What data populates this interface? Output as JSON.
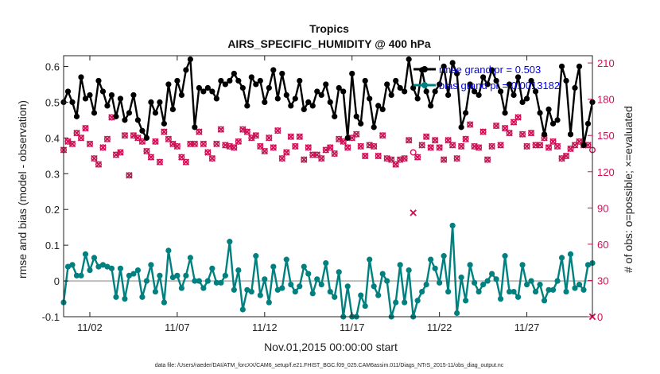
{
  "colors": {
    "rmse": "#000000",
    "bias": "#00807f",
    "obs": "#cc1155",
    "zero_line": "#bdbdbd",
    "legend_text": "#0000ee"
  },
  "chart_data": {
    "type": "line",
    "title": "Tropics",
    "subtitle": "AIRS_SPECIFIC_HUMIDITY @ 400 hPa",
    "xlabel": "Nov.01,2015 00:00:00 start",
    "ylabel": "rmse and bias (model - observation)",
    "y2label": "# of obs: o=possible; ×=evaluated",
    "footnote": "data file: /Users/raeder/DAI/ATM_forcXX/CAM6_setup/f.e21.FHIST_BGC.f09_025.CAM6assim.011/Diags_NTrS_2015-11/obs_diag_output.nc",
    "xlim": [
      0.5,
      30.75
    ],
    "ylim": [
      -0.1,
      0.63
    ],
    "y2lim": [
      0,
      216
    ],
    "x_ticks": [
      2,
      7,
      12,
      17,
      22,
      27
    ],
    "x_tick_labels": [
      "11/02",
      "11/07",
      "11/12",
      "11/17",
      "11/22",
      "11/27"
    ],
    "y_ticks": [
      -0.1,
      0,
      0.1,
      0.2,
      0.3,
      0.4,
      0.5,
      0.6
    ],
    "y_tick_labels": [
      "-0.1",
      "0",
      "0.1",
      "0.2",
      "0.3",
      "0.4",
      "0.5",
      "0.6"
    ],
    "y2_ticks": [
      0,
      30,
      60,
      90,
      120,
      150,
      180,
      210
    ],
    "y2_tick_labels": [
      "0",
      "30",
      "60",
      "90",
      "120",
      "150",
      "180",
      "210"
    ],
    "legend": [
      "rmse grand pr = 0.503",
      "bias grand pr = 0.0013182"
    ],
    "legend_position": "top-right",
    "series": [
      {
        "name": "rmse",
        "x": [
          0.5,
          0.75,
          1.0,
          1.25,
          1.5,
          1.75,
          2.0,
          2.25,
          2.5,
          2.75,
          3.0,
          3.25,
          3.5,
          3.75,
          4.0,
          4.25,
          4.5,
          4.75,
          5.0,
          5.25,
          5.5,
          5.75,
          6.0,
          6.25,
          6.5,
          6.75,
          7.0,
          7.25,
          7.5,
          7.75,
          8.0,
          8.25,
          8.5,
          8.75,
          9.0,
          9.25,
          9.5,
          9.75,
          10.0,
          10.25,
          10.5,
          10.75,
          11.0,
          11.25,
          11.5,
          11.75,
          12.0,
          12.25,
          12.5,
          12.75,
          13.0,
          13.25,
          13.5,
          13.75,
          14.0,
          14.25,
          14.5,
          14.75,
          15.0,
          15.25,
          15.5,
          15.75,
          16.0,
          16.25,
          16.5,
          16.75,
          17.0,
          17.25,
          17.5,
          17.75,
          18.0,
          18.25,
          18.5,
          18.75,
          19.0,
          19.25,
          19.5,
          19.75,
          20.0,
          20.25,
          20.5,
          20.75,
          21.0,
          21.25,
          21.5,
          21.75,
          22.0,
          22.25,
          22.5,
          22.75,
          23.0,
          23.25,
          23.5,
          23.75,
          24.0,
          24.25,
          24.5,
          24.75,
          25.0,
          25.25,
          25.5,
          25.75,
          26.0,
          26.25,
          26.5,
          26.75,
          27.0,
          27.25,
          27.5,
          27.75,
          28.0,
          28.25,
          28.5,
          28.75,
          29.0,
          29.25,
          29.5,
          29.75,
          30.0,
          30.25,
          30.5,
          30.75
        ],
        "values": [
          0.5,
          0.53,
          0.5,
          0.46,
          0.57,
          0.51,
          0.52,
          0.47,
          0.56,
          0.53,
          0.49,
          0.52,
          0.46,
          0.51,
          0.45,
          0.47,
          0.52,
          0.45,
          0.42,
          0.4,
          0.5,
          0.47,
          0.5,
          0.44,
          0.55,
          0.48,
          0.56,
          0.52,
          0.59,
          0.62,
          0.43,
          0.54,
          0.53,
          0.54,
          0.53,
          0.51,
          0.56,
          0.55,
          0.56,
          0.58,
          0.56,
          0.54,
          0.49,
          0.57,
          0.55,
          0.56,
          0.5,
          0.54,
          0.59,
          0.51,
          0.58,
          0.52,
          0.49,
          0.51,
          0.56,
          0.48,
          0.5,
          0.49,
          0.53,
          0.52,
          0.55,
          0.5,
          0.46,
          0.54,
          0.53,
          0.4,
          0.58,
          0.46,
          0.44,
          0.56,
          0.51,
          0.43,
          0.49,
          0.48,
          0.55,
          0.52,
          0.56,
          0.54,
          0.53,
          0.62,
          0.54,
          0.51,
          0.59,
          0.53,
          0.49,
          0.53,
          0.55,
          0.6,
          0.52,
          0.61,
          0.58,
          0.43,
          0.47,
          0.55,
          0.53,
          0.52,
          0.57,
          0.55,
          0.59,
          0.56,
          0.53,
          0.47,
          0.55,
          0.52,
          0.57,
          0.5,
          0.51,
          0.56,
          0.53,
          0.47,
          0.41,
          0.48,
          0.44,
          0.45,
          0.6,
          0.56,
          0.41,
          0.54,
          0.6,
          0.38,
          0.44,
          0.5
        ],
        "color": "#000000"
      },
      {
        "name": "bias",
        "x": [
          0.5,
          0.75,
          1.0,
          1.25,
          1.5,
          1.75,
          2.0,
          2.25,
          2.5,
          2.75,
          3.0,
          3.25,
          3.5,
          3.75,
          4.0,
          4.25,
          4.5,
          4.75,
          5.0,
          5.25,
          5.5,
          5.75,
          6.0,
          6.25,
          6.5,
          6.75,
          7.0,
          7.25,
          7.5,
          7.75,
          8.0,
          8.25,
          8.5,
          8.75,
          9.0,
          9.25,
          9.5,
          9.75,
          10.0,
          10.25,
          10.5,
          10.75,
          11.0,
          11.25,
          11.5,
          11.75,
          12.0,
          12.25,
          12.5,
          12.75,
          13.0,
          13.25,
          13.5,
          13.75,
          14.0,
          14.25,
          14.5,
          14.75,
          15.0,
          15.25,
          15.5,
          15.75,
          16.0,
          16.25,
          16.5,
          16.75,
          17.0,
          17.25,
          17.5,
          17.75,
          18.0,
          18.25,
          18.5,
          18.75,
          19.0,
          19.25,
          19.5,
          19.75,
          20.0,
          20.25,
          20.5,
          20.75,
          21.0,
          21.25,
          21.5,
          21.75,
          22.0,
          22.25,
          22.5,
          22.75,
          23.0,
          23.25,
          23.5,
          23.75,
          24.0,
          24.25,
          24.5,
          24.75,
          25.0,
          25.25,
          25.5,
          25.75,
          26.0,
          26.25,
          26.5,
          26.75,
          27.0,
          27.25,
          27.5,
          27.75,
          28.0,
          28.25,
          28.5,
          28.75,
          29.0,
          29.25,
          29.5,
          29.75,
          30.0,
          30.25,
          30.5,
          30.75
        ],
        "values": [
          -0.06,
          0.04,
          0.045,
          0.015,
          0.015,
          0.075,
          0.03,
          0.065,
          0.04,
          0.045,
          0.04,
          0.035,
          -0.045,
          0.035,
          -0.05,
          0.015,
          0.02,
          0.03,
          -0.045,
          0.0,
          0.045,
          -0.03,
          0.015,
          -0.06,
          0.085,
          0.01,
          0.015,
          -0.02,
          0.015,
          0.065,
          0.0,
          0.0,
          -0.02,
          0.0,
          0.035,
          -0.005,
          -0.005,
          0.015,
          0.11,
          -0.025,
          0.03,
          -0.08,
          -0.025,
          -0.03,
          0.07,
          -0.04,
          0.005,
          -0.06,
          0.04,
          -0.025,
          -0.02,
          0.06,
          -0.01,
          -0.03,
          -0.015,
          0.04,
          0.02,
          -0.035,
          0.005,
          -0.01,
          0.05,
          -0.03,
          -0.045,
          0.025,
          -0.1,
          -0.015,
          -0.1,
          -0.1,
          -0.04,
          -0.07,
          0.06,
          -0.015,
          -0.04,
          0.02,
          0.0,
          -0.1,
          -0.06,
          0.045,
          -0.06,
          0.03,
          -0.1,
          -0.055,
          -0.03,
          -0.01,
          0.06,
          0.035,
          -0.005,
          0.07,
          -0.03,
          0.155,
          -0.09,
          0.01,
          -0.055,
          0.045,
          -0.005,
          -0.03,
          -0.01,
          0.0,
          0.02,
          0.005,
          -0.05,
          0.07,
          -0.03,
          -0.03,
          -0.045,
          0.045,
          -0.01,
          0.0,
          -0.03,
          -0.01,
          -0.055,
          -0.025,
          -0.025,
          0.0,
          0.065,
          -0.03,
          0.075,
          -0.02,
          -0.01,
          -0.025,
          0.045,
          0.05
        ],
        "color": "#00807f"
      },
      {
        "name": "obs_possible",
        "axis": "right",
        "x": [
          0.5,
          0.75,
          1.0,
          1.25,
          1.5,
          1.75,
          2.0,
          2.25,
          2.5,
          2.75,
          3.0,
          3.25,
          3.5,
          3.75,
          4.0,
          4.25,
          4.5,
          4.75,
          5.0,
          5.25,
          5.5,
          5.75,
          6.0,
          6.25,
          6.5,
          6.75,
          7.0,
          7.25,
          7.5,
          7.75,
          8.0,
          8.25,
          8.5,
          8.75,
          9.0,
          9.25,
          9.5,
          9.75,
          10.0,
          10.25,
          10.5,
          10.75,
          11.0,
          11.25,
          11.5,
          11.75,
          12.0,
          12.25,
          12.5,
          12.75,
          13.0,
          13.25,
          13.5,
          13.75,
          14.0,
          14.25,
          14.5,
          14.75,
          15.0,
          15.25,
          15.5,
          15.75,
          16.0,
          16.25,
          16.5,
          16.75,
          17.0,
          17.25,
          17.5,
          17.75,
          18.0,
          18.25,
          18.5,
          18.75,
          19.0,
          19.25,
          19.5,
          19.75,
          20.0,
          20.25,
          20.5,
          20.75,
          21.0,
          21.25,
          21.5,
          21.75,
          22.0,
          22.25,
          22.5,
          22.75,
          23.0,
          23.25,
          23.5,
          23.75,
          24.0,
          24.25,
          24.5,
          24.75,
          25.0,
          25.25,
          25.5,
          25.75,
          26.0,
          26.25,
          26.5,
          26.75,
          27.0,
          27.25,
          27.5,
          27.75,
          28.0,
          28.25,
          28.5,
          28.75,
          29.0,
          29.25,
          29.5,
          29.75,
          30.0,
          30.25,
          30.5,
          30.75
        ],
        "values": [
          138,
          145,
          143,
          152,
          148,
          156,
          143,
          131,
          126,
          140,
          147,
          165,
          134,
          136,
          150,
          117,
          150,
          148,
          145,
          137,
          132,
          145,
          128,
          153,
          147,
          143,
          141,
          132,
          128,
          143,
          143,
          153,
          143,
          136,
          131,
          143,
          155,
          142,
          141,
          140,
          145,
          155,
          153,
          148,
          150,
          141,
          137,
          148,
          140,
          154,
          131,
          136,
          149,
          141,
          149,
          130,
          140,
          134,
          134,
          131,
          138,
          140,
          135,
          147,
          145,
          140,
          148,
          151,
          141,
          133,
          142,
          141,
          133,
          150,
          131,
          130,
          126,
          130,
          131,
          146,
          136,
          132,
          142,
          149,
          140,
          146,
          140,
          130,
          146,
          142,
          131,
          141,
          147,
          159,
          141,
          140,
          153,
          130,
          141,
          158,
          142,
          156,
          152,
          161,
          165,
          151,
          141,
          152,
          142,
          142,
          148,
          140,
          145,
          141,
          131,
          133,
          139,
          142,
          145,
          142,
          142,
          138
        ],
        "color": "#cc1155"
      },
      {
        "name": "obs_evaluated",
        "axis": "right",
        "x": [
          0.5,
          0.75,
          1.0,
          1.25,
          1.5,
          1.75,
          2.0,
          2.25,
          2.5,
          2.75,
          3.0,
          3.25,
          3.5,
          3.75,
          4.0,
          4.25,
          4.5,
          4.75,
          5.0,
          5.25,
          5.5,
          5.75,
          6.0,
          6.25,
          6.5,
          6.75,
          7.0,
          7.25,
          7.5,
          7.75,
          8.0,
          8.25,
          8.5,
          8.75,
          9.0,
          9.25,
          9.5,
          9.75,
          10.0,
          10.25,
          10.5,
          10.75,
          11.0,
          11.25,
          11.5,
          11.75,
          12.0,
          12.25,
          12.5,
          12.75,
          13.0,
          13.25,
          13.5,
          13.75,
          14.0,
          14.25,
          14.5,
          14.75,
          15.0,
          15.25,
          15.5,
          15.75,
          16.0,
          16.25,
          16.5,
          16.75,
          17.0,
          17.25,
          17.5,
          17.75,
          18.0,
          18.25,
          18.5,
          18.75,
          19.0,
          19.25,
          19.5,
          19.75,
          20.0,
          20.25,
          20.5,
          20.75,
          21.0,
          21.25,
          21.5,
          21.75,
          22.0,
          22.25,
          22.5,
          22.75,
          23.0,
          23.25,
          23.5,
          23.75,
          24.0,
          24.25,
          24.5,
          24.75,
          25.0,
          25.25,
          25.5,
          25.75,
          26.0,
          26.25,
          26.5,
          26.75,
          27.0,
          27.25,
          27.5,
          27.75,
          28.0,
          28.25,
          28.5,
          28.75,
          29.0,
          29.25,
          29.5,
          29.75,
          30.0,
          30.25,
          30.5,
          30.75
        ],
        "values": [
          138,
          145,
          143,
          152,
          148,
          156,
          143,
          131,
          126,
          140,
          147,
          165,
          134,
          136,
          150,
          117,
          150,
          148,
          145,
          137,
          132,
          145,
          128,
          153,
          147,
          143,
          141,
          132,
          128,
          143,
          143,
          153,
          143,
          136,
          131,
          143,
          155,
          142,
          141,
          140,
          145,
          155,
          153,
          148,
          150,
          141,
          137,
          148,
          140,
          154,
          131,
          136,
          149,
          141,
          149,
          130,
          140,
          134,
          134,
          131,
          138,
          140,
          135,
          147,
          145,
          140,
          148,
          151,
          141,
          133,
          142,
          141,
          133,
          150,
          131,
          130,
          126,
          130,
          131,
          146,
          86,
          132,
          142,
          149,
          140,
          146,
          140,
          130,
          146,
          142,
          131,
          141,
          147,
          159,
          141,
          140,
          153,
          130,
          141,
          158,
          142,
          156,
          152,
          161,
          165,
          151,
          141,
          152,
          142,
          142,
          148,
          140,
          145,
          141,
          131,
          133,
          139,
          142,
          145,
          142,
          142,
          0
        ],
        "color": "#cc1155"
      }
    ]
  }
}
